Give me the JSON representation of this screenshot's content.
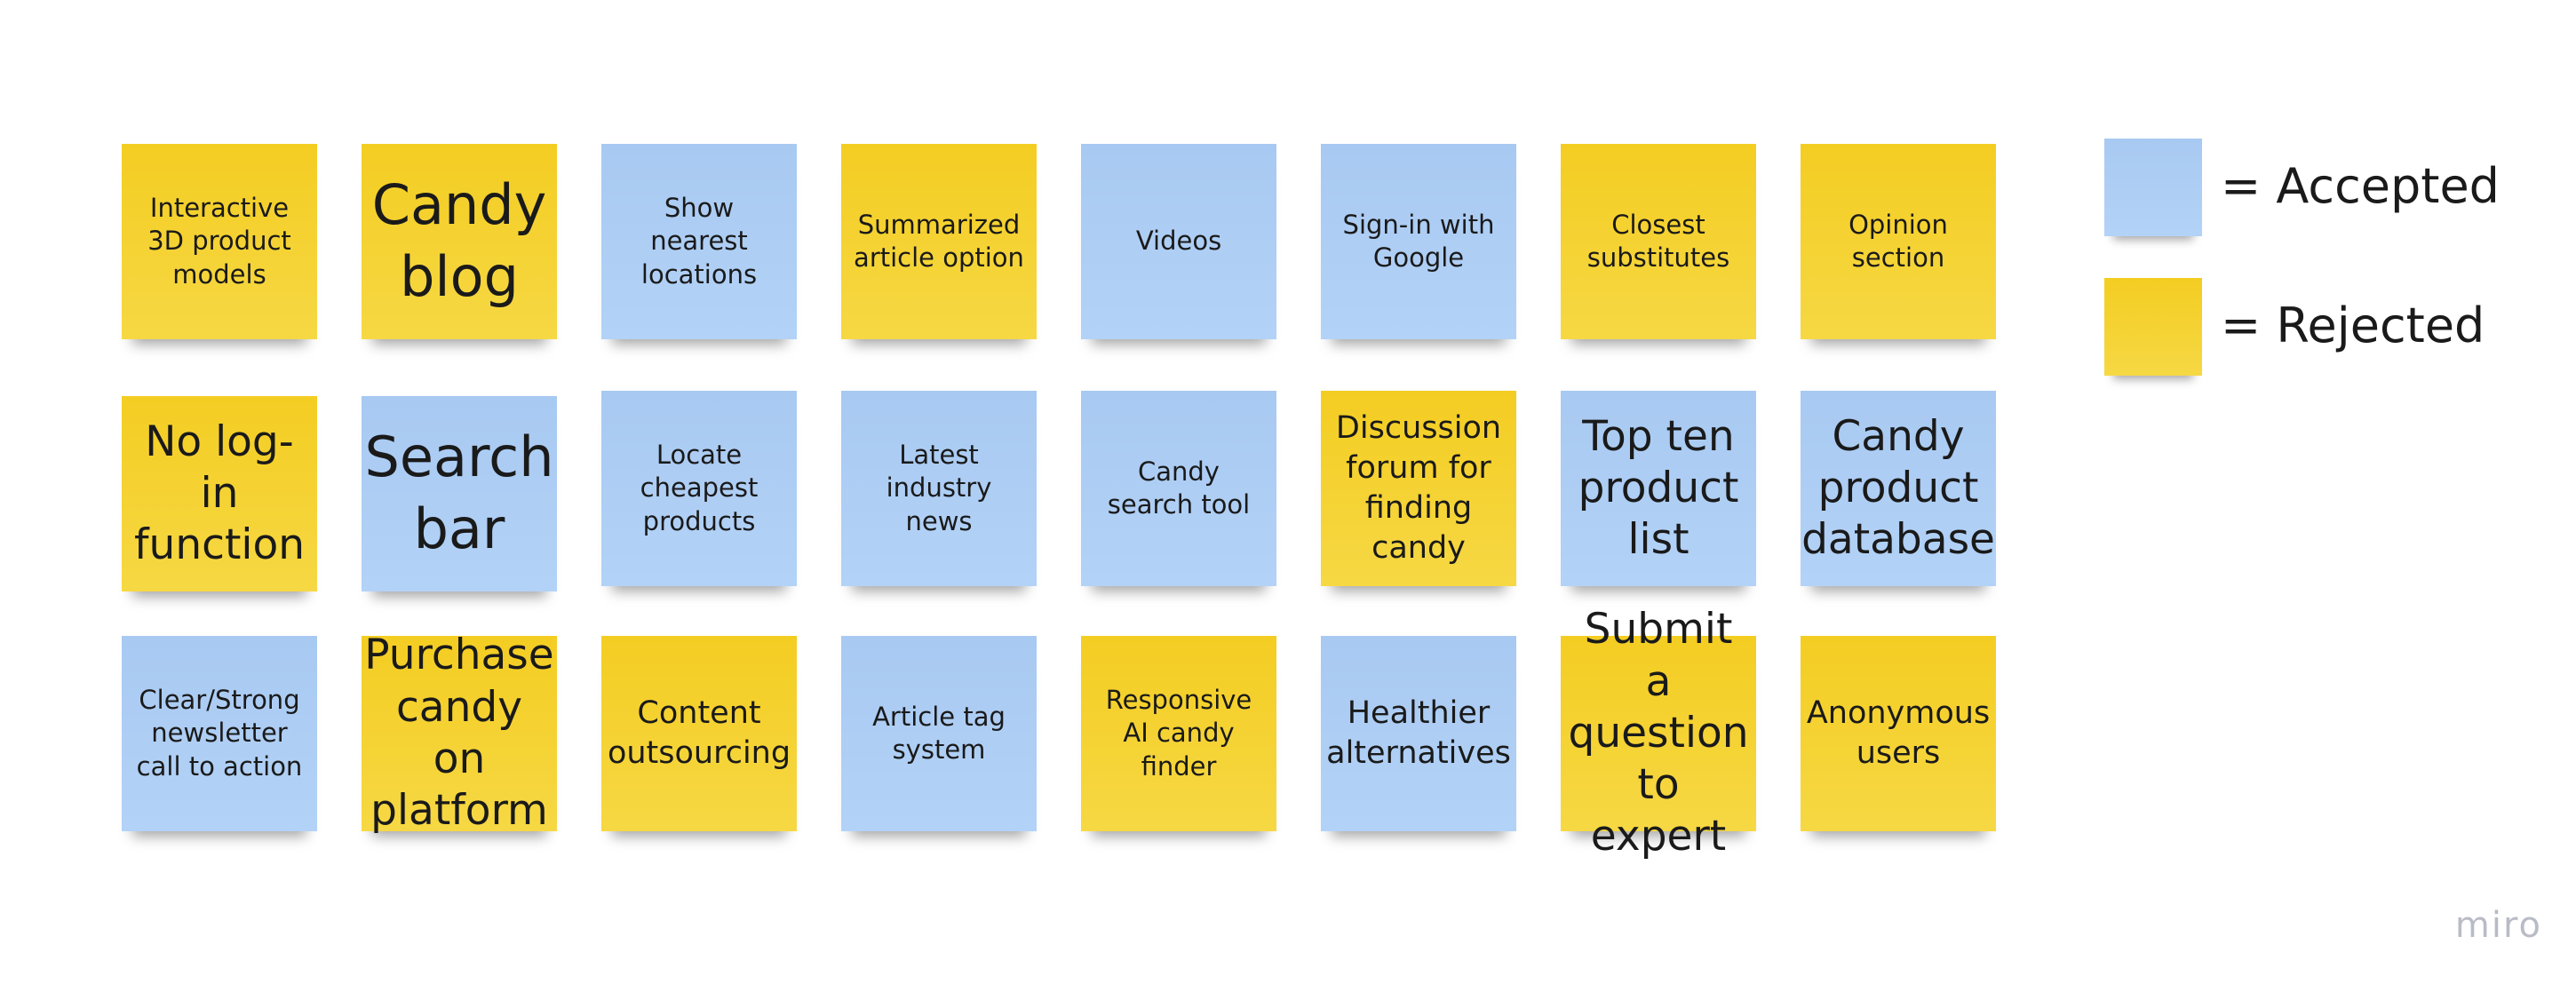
{
  "colors": {
    "accepted": "#a8c9f1",
    "rejected": "#f4cd22"
  },
  "notes": [
    {
      "text": "Interactive 3D product models",
      "status": "rejected"
    },
    {
      "text": "Candy blog",
      "status": "rejected"
    },
    {
      "text": "Show nearest locations",
      "status": "accepted"
    },
    {
      "text": "Summarized article option",
      "status": "rejected"
    },
    {
      "text": "Videos",
      "status": "accepted"
    },
    {
      "text": "Sign-in with Google",
      "status": "accepted"
    },
    {
      "text": "Closest substitutes",
      "status": "rejected"
    },
    {
      "text": "Opinion section",
      "status": "rejected"
    },
    {
      "text": "No log-in function",
      "status": "rejected"
    },
    {
      "text": "Search bar",
      "status": "accepted"
    },
    {
      "text": "Locate cheapest products",
      "status": "accepted"
    },
    {
      "text": "Latest industry news",
      "status": "accepted"
    },
    {
      "text": "Candy search tool",
      "status": "accepted"
    },
    {
      "text": "Discussion forum for finding candy",
      "status": "rejected"
    },
    {
      "text": "Top ten product list",
      "status": "accepted"
    },
    {
      "text": "Candy product database",
      "status": "accepted"
    },
    {
      "text": "Clear/Strong newsletter call to action",
      "status": "accepted"
    },
    {
      "text": "Purchase candy on platform",
      "status": "rejected"
    },
    {
      "text": "Content outsourcing",
      "status": "rejected"
    },
    {
      "text": "Article tag system",
      "status": "accepted"
    },
    {
      "text": "Responsive AI candy finder",
      "status": "rejected"
    },
    {
      "text": "Healthier alternatives",
      "status": "accepted"
    },
    {
      "text": "Submit a question to expert",
      "status": "rejected"
    },
    {
      "text": "Anonymous users",
      "status": "rejected"
    }
  ],
  "legend": {
    "accepted_label": "= Accepted",
    "rejected_label": "= Rejected"
  },
  "branding": {
    "logo_text": "miro"
  }
}
